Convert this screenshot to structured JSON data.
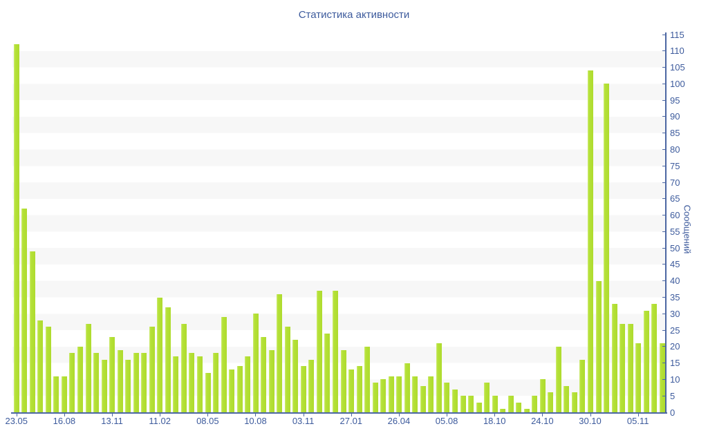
{
  "title": "Статистика активности",
  "y_axis": {
    "label": "Сообщений",
    "min": 0,
    "max": 115,
    "tick_step": 5
  },
  "x_axis": {
    "labels": [
      "23.05",
      "16.08",
      "13.11",
      "11.02",
      "08.05",
      "10.08",
      "03.11",
      "27.01",
      "26.04",
      "05.08",
      "18.10",
      "24.10",
      "30.10",
      "05.11"
    ],
    "label_bar_indices": [
      1,
      7,
      13,
      19,
      25,
      31,
      37,
      43,
      49,
      55,
      61,
      67,
      73,
      79
    ]
  },
  "chart_data": {
    "type": "bar",
    "title": "Статистика активности",
    "xlabel": "",
    "ylabel": "Сообщений",
    "ylim": [
      0,
      115
    ],
    "y_tick_step": 5,
    "grid": "horizontal-stripes-every-5-units",
    "legend_position": "none",
    "bar_count": 82,
    "x_tick_labels": [
      "23.05",
      "16.08",
      "13.11",
      "11.02",
      "08.05",
      "10.08",
      "03.11",
      "27.01",
      "26.04",
      "05.08",
      "18.10",
      "24.10",
      "30.10",
      "05.11"
    ],
    "x_tick_bar_indices": [
      1,
      7,
      13,
      19,
      25,
      31,
      37,
      43,
      49,
      55,
      61,
      67,
      73,
      79
    ],
    "values": [
      112,
      62,
      49,
      28,
      26,
      11,
      11,
      18,
      20,
      27,
      18,
      16,
      23,
      19,
      16,
      18,
      18,
      26,
      35,
      32,
      17,
      27,
      18,
      17,
      12,
      18,
      29,
      13,
      14,
      17,
      30,
      23,
      19,
      36,
      26,
      22,
      14,
      16,
      37,
      24,
      37,
      19,
      13,
      14,
      20,
      9,
      10,
      11,
      11,
      15,
      11,
      8,
      11,
      21,
      9,
      7,
      5,
      5,
      3,
      9,
      5,
      1,
      5,
      3,
      1,
      5,
      10,
      6,
      20,
      8,
      6,
      16,
      104,
      40,
      100,
      33,
      27,
      27,
      21,
      31,
      33,
      21
    ]
  },
  "colors": {
    "background": "#ffffff",
    "bar": "#aedb2e",
    "bar_edge_highlight": "#cdeb72",
    "axis": "#4b66a2",
    "text": "#3c5a9c",
    "stripe": "#f7f7f7"
  }
}
